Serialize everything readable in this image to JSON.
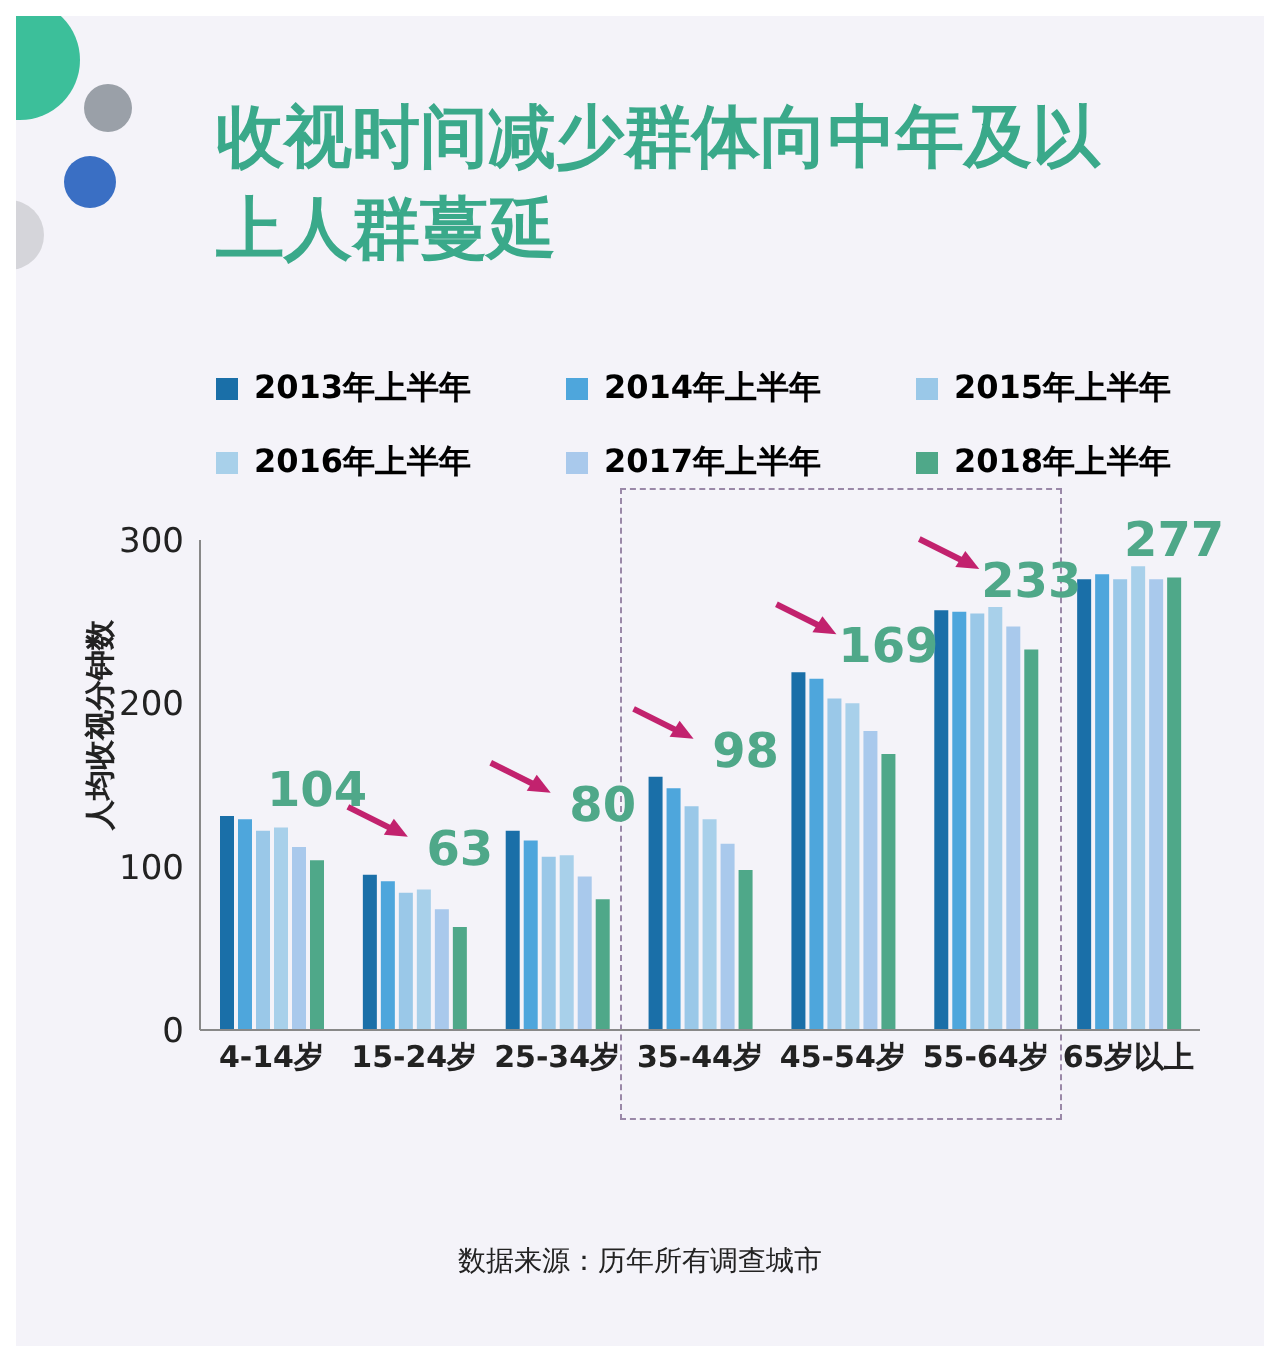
{
  "chart_data": {
    "type": "bar",
    "title": "收视时间减少群体向中年及以上人群蔓延",
    "ylabel": "人均收视分钟数",
    "categories": [
      "4-14岁",
      "15-24岁",
      "25-34岁",
      "35-44岁",
      "45-54岁",
      "55-64岁",
      "65岁以上"
    ],
    "series": [
      {
        "name": "2013年上半年",
        "color": "#1a6fa8",
        "values": [
          131,
          95,
          122,
          155,
          219,
          257,
          276
        ]
      },
      {
        "name": "2014年上半年",
        "color": "#4ea6dc",
        "values": [
          129,
          91,
          116,
          148,
          215,
          256,
          279
        ]
      },
      {
        "name": "2015年上半年",
        "color": "#9ac8e8",
        "values": [
          122,
          84,
          106,
          137,
          203,
          255,
          276
        ]
      },
      {
        "name": "2016年上半年",
        "color": "#a8d0ea",
        "values": [
          124,
          86,
          107,
          129,
          200,
          259,
          284
        ]
      },
      {
        "name": "2017年上半年",
        "color": "#a9c9ec",
        "values": [
          112,
          74,
          94,
          114,
          183,
          247,
          276
        ]
      },
      {
        "name": "2018年上半年",
        "color": "#4fa889",
        "values": [
          104,
          63,
          80,
          98,
          169,
          233,
          277
        ],
        "value_labels": [
          "104",
          "63",
          "80",
          "98",
          "169",
          "233",
          "277"
        ]
      }
    ],
    "ylim": [
      0,
      300
    ],
    "yticks": [
      0,
      100,
      200,
      300
    ],
    "legend": "top",
    "annotations": [
      "数据来源：历年所有调查城市"
    ]
  }
}
